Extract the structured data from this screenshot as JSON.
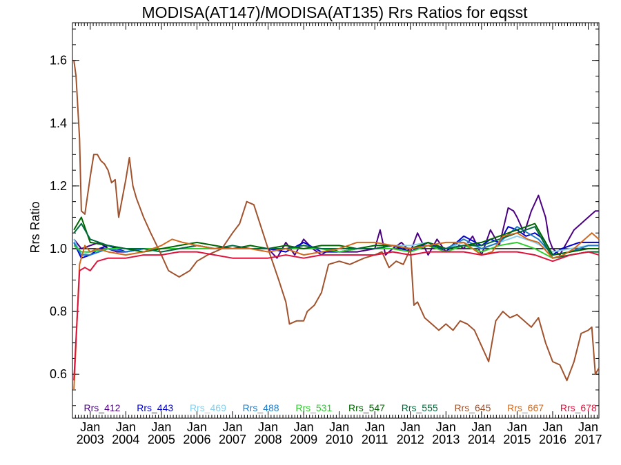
{
  "chart_data": {
    "type": "line",
    "title": "MODISA(AT147)/MODISA(AT135)  Rrs Ratios for eqsst",
    "xlabel": "",
    "ylabel": "Rrs Ratio",
    "xlim": [
      2002.5,
      2017.3
    ],
    "ylim": [
      0.46,
      1.72
    ],
    "yticks": [
      0.6,
      0.8,
      1.0,
      1.2,
      1.4,
      1.6
    ],
    "ytick_labels": [
      "0.6",
      "0.8",
      "1.0",
      "1.2",
      "1.4",
      "1.6"
    ],
    "xticks": [
      2003,
      2004,
      2005,
      2006,
      2007,
      2008,
      2009,
      2010,
      2011,
      2012,
      2013,
      2014,
      2015,
      2016,
      2017
    ],
    "xtick_labels_top": [
      "Jan",
      "Jan",
      "Jan",
      "Jan",
      "Jan",
      "Jan",
      "Jan",
      "Jan",
      "Jan",
      "Jan",
      "Jan",
      "Jan",
      "Jan",
      "Jan",
      "Jan"
    ],
    "xtick_labels_bottom": [
      "2003",
      "2004",
      "2005",
      "2006",
      "2007",
      "2008",
      "2009",
      "2010",
      "2011",
      "2012",
      "2013",
      "2014",
      "2015",
      "2016",
      "2017"
    ],
    "reference_line": 1.0,
    "grid": false,
    "legend_placement": "bottom",
    "series": [
      {
        "name": "Rrs_412",
        "color": "#4b0082",
        "x": [
          2002.54,
          2002.75,
          2003.0,
          2003.25,
          2003.5,
          2003.75,
          2004.0,
          2004.5,
          2005.0,
          2005.5,
          2006.0,
          2006.5,
          2007.0,
          2007.5,
          2008.0,
          2008.25,
          2008.5,
          2008.75,
          2009.0,
          2009.25,
          2009.5,
          2009.75,
          2010.0,
          2010.5,
          2011.0,
          2011.15,
          2011.3,
          2011.5,
          2011.75,
          2012.0,
          2012.2,
          2012.5,
          2012.75,
          2013.0,
          2013.25,
          2013.5,
          2013.75,
          2014.0,
          2014.25,
          2014.5,
          2014.75,
          2014.9,
          2015.0,
          2015.2,
          2015.4,
          2015.6,
          2015.8,
          2015.9,
          2016.0,
          2016.2,
          2016.4,
          2016.6,
          2016.8,
          2017.0,
          2017.2,
          2017.3
        ],
        "y": [
          1.03,
          1.0,
          1.01,
          1.02,
          1.0,
          0.99,
          0.99,
          1.0,
          1.0,
          1.0,
          1.0,
          1.0,
          1.0,
          1.0,
          1.0,
          0.97,
          1.02,
          0.98,
          1.03,
          1.0,
          0.98,
          1.0,
          0.99,
          0.99,
          1.0,
          1.06,
          0.98,
          1.0,
          1.02,
          0.99,
          1.05,
          0.98,
          1.03,
          0.99,
          1.02,
          1.0,
          1.04,
          0.98,
          1.06,
          1.01,
          1.13,
          1.12,
          1.1,
          1.05,
          1.12,
          1.17,
          1.1,
          1.03,
          1.0,
          0.98,
          1.02,
          1.06,
          1.08,
          1.1,
          1.12,
          1.12
        ]
      },
      {
        "name": "Rrs_443",
        "color": "#0000cd",
        "x": [
          2002.54,
          2002.75,
          2003.0,
          2003.25,
          2003.5,
          2004.0,
          2004.5,
          2005.0,
          2005.5,
          2006.0,
          2006.5,
          2007.0,
          2007.5,
          2008.0,
          2008.5,
          2009.0,
          2009.5,
          2010.0,
          2010.5,
          2011.0,
          2011.5,
          2012.0,
          2012.5,
          2013.0,
          2013.5,
          2014.0,
          2014.25,
          2014.5,
          2014.75,
          2015.0,
          2015.25,
          2015.5,
          2015.75,
          2016.0,
          2016.25,
          2016.5,
          2016.75,
          2017.0,
          2017.3
        ],
        "y": [
          1.02,
          0.97,
          0.98,
          1.0,
          1.01,
          0.99,
          1.0,
          1.0,
          1.0,
          1.01,
          1.0,
          1.0,
          1.0,
          1.0,
          0.99,
          1.02,
          0.99,
          0.99,
          1.0,
          1.0,
          1.01,
          0.99,
          1.02,
          0.99,
          1.04,
          1.01,
          1.03,
          1.02,
          1.07,
          1.06,
          1.04,
          1.05,
          1.03,
          0.98,
          1.0,
          1.01,
          1.02,
          1.02,
          1.02
        ]
      },
      {
        "name": "Rrs_469",
        "color": "#87ceeb",
        "x": [
          2002.54,
          2002.75,
          2003.0,
          2003.5,
          2004.0,
          2004.5,
          2005.0,
          2005.5,
          2006.0,
          2006.5,
          2007.0,
          2007.5,
          2008.0,
          2008.5,
          2009.0,
          2009.5,
          2010.0,
          2010.5,
          2011.0,
          2011.5,
          2012.0,
          2012.5,
          2013.0,
          2013.5,
          2014.0,
          2014.5,
          2015.0,
          2015.5,
          2016.0,
          2016.5,
          2017.0,
          2017.3
        ],
        "y": [
          1.03,
          0.98,
          0.99,
          1.0,
          1.0,
          1.0,
          1.0,
          1.0,
          1.0,
          1.0,
          1.0,
          1.0,
          1.0,
          1.0,
          1.0,
          1.0,
          1.0,
          1.0,
          1.0,
          1.01,
          1.01,
          1.02,
          1.0,
          1.02,
          1.0,
          1.02,
          1.04,
          1.02,
          0.99,
          1.0,
          1.01,
          1.01
        ]
      },
      {
        "name": "Rrs_488",
        "color": "#1e7bc8",
        "x": [
          2002.54,
          2002.75,
          2003.0,
          2003.5,
          2004.0,
          2004.5,
          2005.0,
          2005.5,
          2006.0,
          2006.5,
          2007.0,
          2007.5,
          2008.0,
          2008.5,
          2009.0,
          2009.5,
          2010.0,
          2010.5,
          2011.0,
          2011.5,
          2012.0,
          2012.5,
          2013.0,
          2013.5,
          2014.0,
          2014.5,
          2015.0,
          2015.3,
          2015.6,
          2016.0,
          2016.5,
          2017.0,
          2017.3
        ],
        "y": [
          1.02,
          0.98,
          0.98,
          1.0,
          0.99,
          1.0,
          1.0,
          1.0,
          1.0,
          1.0,
          1.0,
          1.0,
          1.0,
          1.0,
          1.0,
          1.0,
          0.99,
          1.0,
          1.0,
          1.01,
          1.0,
          1.02,
          1.0,
          1.03,
          1.0,
          1.02,
          1.07,
          1.05,
          1.03,
          0.98,
          0.99,
          1.01,
          1.01
        ]
      },
      {
        "name": "Rrs_531",
        "color": "#32cd32",
        "x": [
          2002.54,
          2002.75,
          2003.0,
          2003.5,
          2004.0,
          2004.5,
          2005.0,
          2005.5,
          2006.0,
          2006.5,
          2007.0,
          2007.5,
          2008.0,
          2008.5,
          2009.0,
          2009.5,
          2010.0,
          2010.5,
          2011.0,
          2011.5,
          2012.0,
          2012.5,
          2013.0,
          2013.5,
          2014.0,
          2014.5,
          2015.0,
          2015.5,
          2016.0,
          2016.5,
          2017.0,
          2017.3
        ],
        "y": [
          1.01,
          0.99,
          0.99,
          1.0,
          1.0,
          1.0,
          1.0,
          1.0,
          1.0,
          1.0,
          1.0,
          1.0,
          1.0,
          1.0,
          1.0,
          1.0,
          0.99,
          1.0,
          1.0,
          1.0,
          0.99,
          1.01,
          0.99,
          1.01,
          0.99,
          1.01,
          1.02,
          1.0,
          0.97,
          0.98,
          0.99,
          0.99
        ]
      },
      {
        "name": "Rrs_547",
        "color": "#006400",
        "x": [
          2002.54,
          2002.75,
          2003.0,
          2003.5,
          2004.0,
          2004.5,
          2005.0,
          2005.5,
          2006.0,
          2006.5,
          2007.0,
          2007.5,
          2008.0,
          2008.5,
          2009.0,
          2009.5,
          2010.0,
          2010.5,
          2011.0,
          2011.5,
          2012.0,
          2012.5,
          2013.0,
          2013.5,
          2014.0,
          2014.5,
          2015.0,
          2015.5,
          2016.0,
          2016.5,
          2017.0,
          2017.3
        ],
        "y": [
          1.06,
          1.1,
          1.02,
          1.01,
          1.0,
          0.99,
          1.0,
          1.01,
          1.02,
          1.01,
          1.0,
          1.01,
          1.0,
          1.01,
          1.0,
          1.01,
          1.01,
          1.0,
          1.01,
          1.01,
          1.0,
          1.02,
          1.0,
          1.01,
          1.02,
          1.04,
          1.06,
          1.08,
          0.98,
          0.99,
          1.0,
          1.0
        ]
      },
      {
        "name": "Rrs_555",
        "color": "#006b3c",
        "x": [
          2002.54,
          2002.75,
          2003.0,
          2003.5,
          2004.0,
          2004.5,
          2005.0,
          2005.5,
          2006.0,
          2006.5,
          2007.0,
          2007.5,
          2008.0,
          2008.5,
          2009.0,
          2009.5,
          2010.0,
          2010.5,
          2011.0,
          2011.5,
          2012.0,
          2012.5,
          2013.0,
          2013.5,
          2014.0,
          2014.5,
          2015.0,
          2015.5,
          2016.0,
          2016.5,
          2017.0,
          2017.3
        ],
        "y": [
          1.05,
          1.08,
          1.03,
          1.01,
          1.0,
          1.0,
          0.99,
          1.0,
          1.01,
          1.0,
          1.01,
          1.0,
          1.0,
          1.0,
          1.01,
          1.0,
          1.0,
          1.0,
          1.0,
          1.01,
          1.0,
          1.01,
          1.0,
          1.01,
          1.01,
          1.03,
          1.05,
          1.07,
          0.97,
          0.98,
          0.99,
          0.99
        ]
      },
      {
        "name": "Rrs_645",
        "color": "#a0522d",
        "x": [
          2002.54,
          2002.6,
          2002.7,
          2002.75,
          2002.85,
          2003.0,
          2003.1,
          2003.2,
          2003.3,
          2003.4,
          2003.5,
          2003.6,
          2003.7,
          2003.8,
          2004.0,
          2004.1,
          2004.2,
          2004.3,
          2004.4,
          2004.5,
          2004.7,
          2005.0,
          2005.2,
          2005.5,
          2005.8,
          2006.0,
          2006.3,
          2006.5,
          2006.7,
          2007.0,
          2007.2,
          2007.4,
          2007.6,
          2008.0,
          2008.3,
          2008.5,
          2008.6,
          2008.8,
          2009.0,
          2009.1,
          2009.3,
          2009.5,
          2009.7,
          2010.0,
          2010.3,
          2010.5,
          2010.7,
          2011.0,
          2011.2,
          2011.4,
          2011.6,
          2011.8,
          2012.0,
          2012.1,
          2012.2,
          2012.4,
          2012.6,
          2012.8,
          2013.0,
          2013.2,
          2013.4,
          2013.6,
          2013.8,
          2014.0,
          2014.2,
          2014.4,
          2014.6,
          2014.8,
          2015.0,
          2015.2,
          2015.4,
          2015.6,
          2015.8,
          2016.0,
          2016.2,
          2016.4,
          2016.6,
          2016.8,
          2017.0,
          2017.1,
          2017.2,
          2017.3
        ],
        "y": [
          1.6,
          1.55,
          1.35,
          1.12,
          1.11,
          1.23,
          1.3,
          1.3,
          1.28,
          1.27,
          1.25,
          1.21,
          1.22,
          1.1,
          1.22,
          1.29,
          1.2,
          1.16,
          1.13,
          1.1,
          1.05,
          0.98,
          0.93,
          0.91,
          0.93,
          0.96,
          0.98,
          0.99,
          1.0,
          1.05,
          1.08,
          1.15,
          1.14,
          1.0,
          0.9,
          0.83,
          0.76,
          0.77,
          0.77,
          0.8,
          0.82,
          0.86,
          0.95,
          0.96,
          0.95,
          0.96,
          0.97,
          0.98,
          0.99,
          0.94,
          0.96,
          0.95,
          1.0,
          0.82,
          0.83,
          0.78,
          0.76,
          0.74,
          0.76,
          0.74,
          0.77,
          0.76,
          0.74,
          0.69,
          0.64,
          0.77,
          0.8,
          0.78,
          0.79,
          0.77,
          0.75,
          0.78,
          0.7,
          0.64,
          0.63,
          0.58,
          0.64,
          0.73,
          0.74,
          0.75,
          0.6,
          0.62
        ]
      },
      {
        "name": "Rrs_667",
        "color": "#d2691e",
        "x": [
          2002.54,
          2002.7,
          2002.85,
          2003.0,
          2003.2,
          2003.5,
          2004.0,
          2004.5,
          2005.0,
          2005.3,
          2005.6,
          2006.0,
          2006.5,
          2007.0,
          2007.5,
          2008.0,
          2008.5,
          2009.0,
          2009.5,
          2010.0,
          2010.5,
          2011.0,
          2011.5,
          2012.0,
          2012.5,
          2013.0,
          2013.5,
          2014.0,
          2014.3,
          2014.6,
          2015.0,
          2015.3,
          2015.6,
          2016.0,
          2016.3,
          2016.6,
          2016.9,
          2017.1,
          2017.3
        ],
        "y": [
          0.55,
          0.95,
          1.01,
          0.99,
          1.0,
          0.99,
          0.98,
          0.99,
          1.01,
          1.03,
          1.02,
          1.01,
          1.0,
          1.0,
          1.0,
          0.99,
          1.0,
          0.98,
          0.99,
          1.0,
          1.02,
          1.02,
          1.01,
          1.0,
          1.01,
          1.02,
          1.02,
          0.98,
          0.99,
          1.04,
          1.05,
          1.03,
          1.02,
          0.97,
          0.98,
          1.0,
          1.03,
          1.05,
          1.03
        ]
      },
      {
        "name": "Rrs_678",
        "color": "#dc143c",
        "x": [
          2002.54,
          2002.7,
          2002.85,
          2003.0,
          2003.2,
          2003.5,
          2004.0,
          2004.5,
          2005.0,
          2005.5,
          2006.0,
          2006.5,
          2007.0,
          2007.5,
          2008.0,
          2008.5,
          2009.0,
          2009.5,
          2010.0,
          2010.5,
          2011.0,
          2011.5,
          2012.0,
          2012.5,
          2013.0,
          2013.5,
          2014.0,
          2014.5,
          2015.0,
          2015.5,
          2016.0,
          2016.5,
          2017.0,
          2017.3
        ],
        "y": [
          0.58,
          0.93,
          0.94,
          0.93,
          0.96,
          0.97,
          0.97,
          0.98,
          0.98,
          0.99,
          0.99,
          0.98,
          0.97,
          0.97,
          0.97,
          0.98,
          0.97,
          0.98,
          0.98,
          0.98,
          0.98,
          0.99,
          0.98,
          0.99,
          0.99,
          0.99,
          0.98,
          0.99,
          0.99,
          0.98,
          0.96,
          0.98,
          0.99,
          0.98
        ]
      }
    ]
  }
}
